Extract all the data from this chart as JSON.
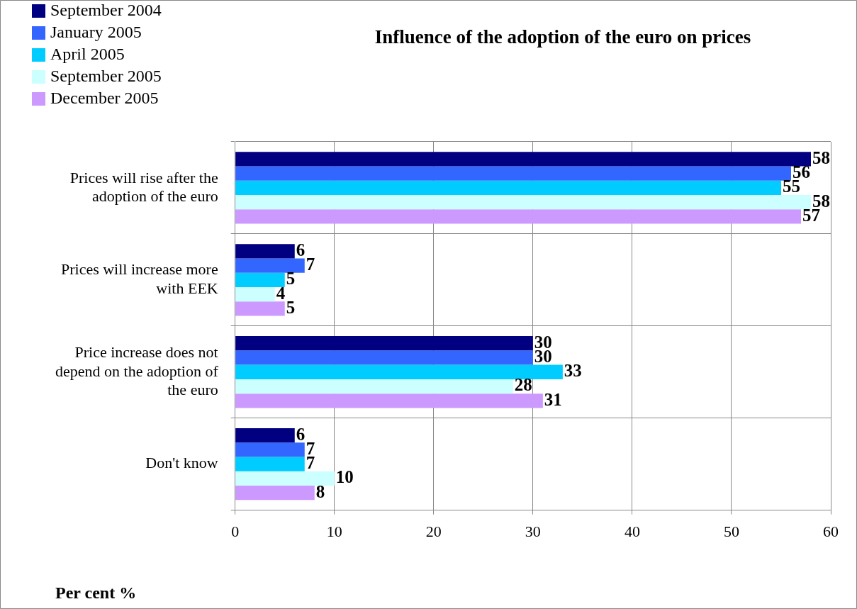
{
  "chart_data": {
    "type": "bar",
    "orientation": "horizontal",
    "title": "Influence of the adoption of the euro on prices",
    "xlabel": "Per cent %",
    "categories": [
      "Prices will rise after the adoption of the euro",
      "Prices will increase more with EEK",
      "Price increase does not depend on the adoption of the euro",
      "Don't know"
    ],
    "series": [
      {
        "name": "September 2004",
        "color": "#000080",
        "values": [
          58,
          6,
          30,
          6
        ]
      },
      {
        "name": "January 2005",
        "color": "#3366ff",
        "values": [
          56,
          7,
          30,
          7
        ]
      },
      {
        "name": "April 2005",
        "color": "#00ccff",
        "values": [
          55,
          5,
          33,
          7
        ]
      },
      {
        "name": "September 2005",
        "color": "#ccffff",
        "values": [
          58,
          4,
          28,
          10
        ]
      },
      {
        "name": "December 2005",
        "color": "#cc99ff",
        "values": [
          57,
          5,
          31,
          8
        ]
      }
    ],
    "xlim": [
      0,
      60
    ],
    "xticks": [
      0,
      10,
      20,
      30,
      40,
      50,
      60
    ],
    "grid": true,
    "legend": "top left",
    "data_labels": true
  }
}
